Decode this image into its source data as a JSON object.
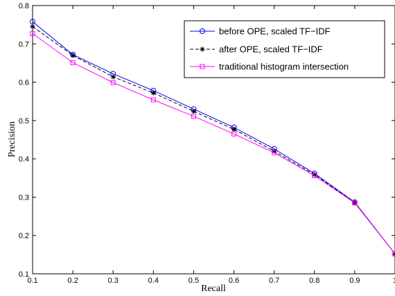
{
  "chart_data": {
    "type": "line",
    "title": "",
    "xlabel": "Recall",
    "ylabel": "Precision",
    "xlim": [
      0.1,
      1
    ],
    "ylim": [
      0.1,
      0.8
    ],
    "grid": false,
    "legend_position": "top-right",
    "x_ticks": [
      "0.1",
      "0.2",
      "0.3",
      "0.4",
      "0.5",
      "0.6",
      "0.7",
      "0.8",
      "0.9",
      "1"
    ],
    "y_ticks": [
      "0.1",
      "0.2",
      "0.3",
      "0.4",
      "0.5",
      "0.6",
      "0.7",
      "0.8"
    ],
    "x": [
      0.1,
      0.2,
      0.3,
      0.4,
      0.5,
      0.6,
      0.7,
      0.8,
      0.9,
      1.0
    ],
    "series": [
      {
        "name": "before OPE, scaled TF−IDF",
        "color": "#0000ff",
        "line_style": "solid",
        "marker": "circle",
        "values": [
          0.758,
          0.672,
          0.622,
          0.578,
          0.53,
          0.482,
          0.426,
          0.362,
          0.287,
          0.152
        ]
      },
      {
        "name": "after OPE, scaled TF−IDF",
        "color": "#000000",
        "line_style": "dashed",
        "marker": "asterisk",
        "values": [
          0.745,
          0.67,
          0.614,
          0.572,
          0.524,
          0.477,
          0.42,
          0.359,
          0.286,
          0.152
        ]
      },
      {
        "name": "traditional histogram intersection",
        "color": "#ff00ff",
        "line_style": "solid",
        "marker": "square",
        "values": [
          0.727,
          0.651,
          0.599,
          0.554,
          0.511,
          0.465,
          0.416,
          0.356,
          0.285,
          0.152
        ]
      }
    ]
  }
}
